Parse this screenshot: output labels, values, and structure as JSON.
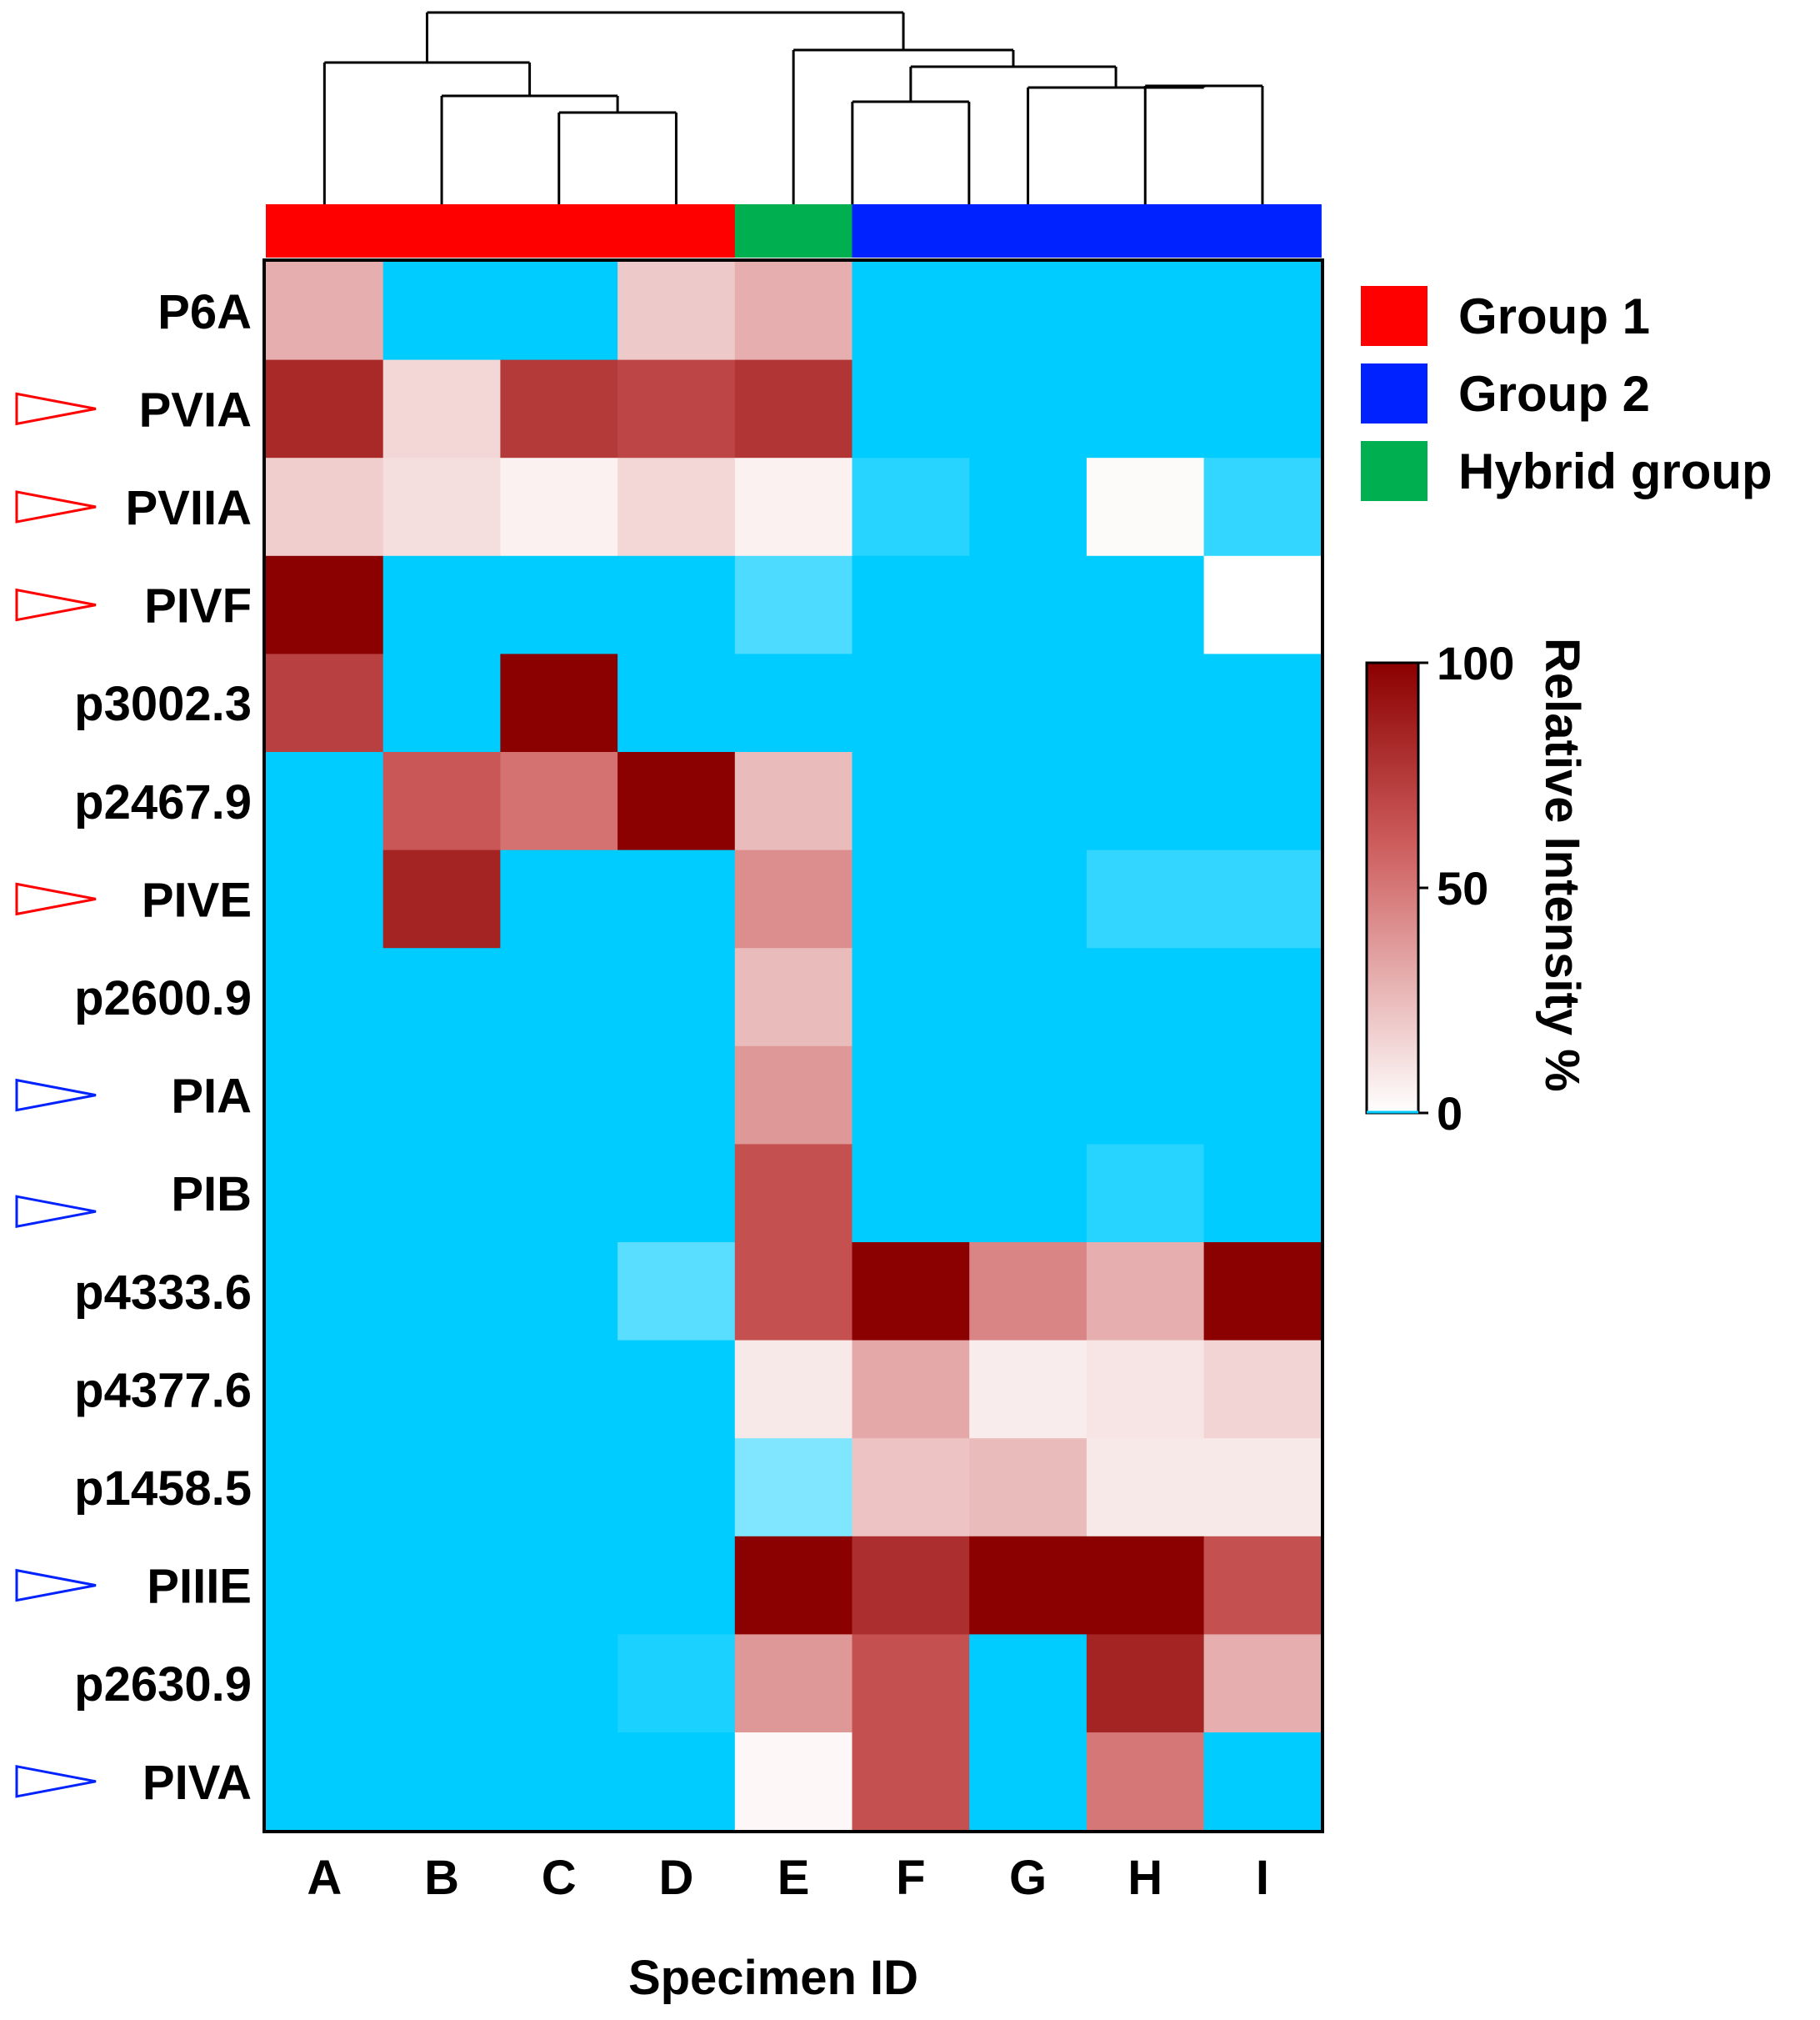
{
  "chart_data": {
    "type": "heatmap",
    "title": "",
    "xlabel": "Specimen ID",
    "ylabel": "",
    "columns": [
      "A",
      "B",
      "C",
      "D",
      "E",
      "F",
      "G",
      "H",
      "I"
    ],
    "rows": [
      "P6A",
      "PVIA",
      "PVIIA",
      "PIVF",
      "p3002.3",
      "p2467.9",
      "PIVE",
      "p2600.9",
      "PIA",
      "PIB",
      "p4333.6",
      "p4377.6",
      "p1458.5",
      "PIIIE",
      "p2630.9",
      "PIVA"
    ],
    "row_markers": [
      null,
      "red",
      "red",
      "red",
      null,
      null,
      "red",
      null,
      "blue",
      "blue",
      null,
      null,
      null,
      "blue",
      null,
      "blue"
    ],
    "values": [
      [
        30,
        -1,
        -1,
        20,
        30,
        -1,
        -1,
        -1,
        -1
      ],
      [
        82,
        15,
        75,
        70,
        77,
        -1,
        -1,
        -1,
        -1
      ],
      [
        18,
        12,
        5,
        15,
        5,
        -0.85,
        -1,
        2,
        -0.8
      ],
      [
        100,
        -1,
        -1,
        -1,
        -0.7,
        -1,
        -1,
        -1,
        0
      ],
      [
        72,
        -1,
        100,
        -1,
        -1,
        -1,
        -1,
        -1,
        -1
      ],
      [
        -1,
        62,
        52,
        100,
        25,
        -1,
        -1,
        -1,
        -1
      ],
      [
        -1,
        85,
        -1,
        -1,
        42,
        -1,
        -1,
        -0.8,
        -0.8
      ],
      [
        -1,
        -1,
        -1,
        -1,
        25,
        -1,
        -1,
        -1,
        -1
      ],
      [
        -1,
        -1,
        -1,
        -1,
        38,
        -1,
        -1,
        -1,
        -1
      ],
      [
        -1,
        -1,
        -1,
        -1,
        65,
        -1,
        -1,
        -0.85,
        -1
      ],
      [
        -1,
        -1,
        -1,
        -0.65,
        65,
        100,
        45,
        30,
        100
      ],
      [
        -1,
        -1,
        -1,
        -1,
        8,
        32,
        7,
        10,
        16
      ],
      [
        -1,
        -1,
        -1,
        -1,
        -0.5,
        22,
        25,
        8,
        8
      ],
      [
        -1,
        -1,
        -1,
        -1,
        100,
        80,
        100,
        100,
        65
      ],
      [
        -1,
        -1,
        -1,
        -0.9,
        38,
        65,
        -1,
        85,
        30
      ],
      [
        -1,
        -1,
        -1,
        -1,
        3,
        65,
        -1,
        50,
        -1
      ]
    ],
    "value_note": "Relative intensity % (0-100); negative numbers = cyan 'not detected' cells (-1 full cyan, closer to 0 = lighter cyan)",
    "column_groups": [
      "Group 1",
      "Group 1",
      "Group 1",
      "Group 1",
      "Hybrid group",
      "Group 2",
      "Group 2",
      "Group 2",
      "Group 2"
    ],
    "dendrogram": "((A,((B,(C,D)))),(E,((F),(G,(H,I)))))",
    "legend": [
      {
        "label": "Group 1",
        "color": "#ff0000"
      },
      {
        "label": "Group 2",
        "color": "#0022ff"
      },
      {
        "label": "Hybrid group",
        "color": "#00b050"
      }
    ],
    "colorbar": {
      "label": "Relative Intensity %",
      "ticks": [
        "0",
        "50",
        "100"
      ],
      "range": [
        0,
        100
      ],
      "low_color": "#ffffff",
      "high_color": "#8b0000",
      "missing_color": "#00ccff"
    }
  }
}
